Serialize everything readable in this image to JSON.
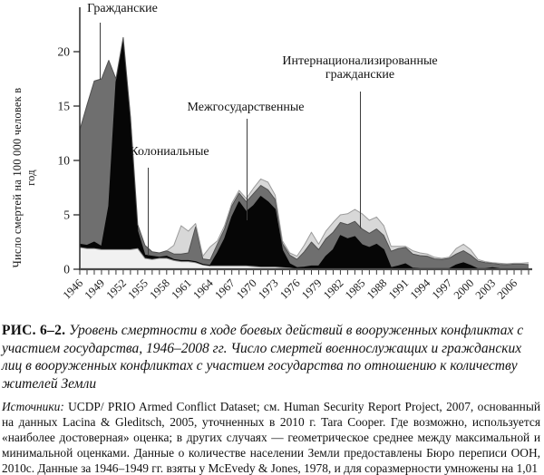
{
  "figure": {
    "caption_label": "РИС. 6–2.",
    "caption_text": "Уровень смертности в ходе боевых действий в вооруженных конфликтах с участием государства, 1946–2008 гг. Число смертей военнослужащих и гражданских лиц в вооруженных конфликтах с участием государства по отношению к количеству жителей Земли",
    "sources_label": "Источники:",
    "sources_text": "UCDP/ PRIO Armed Conflict Dataset; см. Human Security Report Project, 2007, основанный на данных Lacina & Gleditsch, 2005, уточненных в 2010 г. Tara Cooper. Где возможно, используется «наиболее достоверная» оценка; в других случаях — геометрическое среднее между максимальной и минимальной оценками. Данные о количестве населении Земли предоставлены Бюро переписи ООН, 2010с. Данные за 1946–1949 гг. взяты у McEvedy & Jones, 1978, и для соразмерности умножены на 1,01"
  },
  "chart_data": {
    "type": "area",
    "stacked": true,
    "title": "",
    "xlabel": "",
    "ylabel": "Число смертей на 100 000 человек в год",
    "ylim": [
      0,
      24
    ],
    "yticks": [
      0,
      5,
      10,
      15,
      20
    ],
    "grid": false,
    "legend_position": "inline-annotations",
    "x": [
      1946,
      1947,
      1948,
      1949,
      1950,
      1951,
      1952,
      1953,
      1954,
      1955,
      1956,
      1957,
      1958,
      1959,
      1960,
      1961,
      1962,
      1963,
      1964,
      1965,
      1966,
      1967,
      1968,
      1969,
      1970,
      1971,
      1972,
      1973,
      1974,
      1975,
      1976,
      1977,
      1978,
      1979,
      1980,
      1981,
      1982,
      1983,
      1984,
      1985,
      1986,
      1987,
      1988,
      1989,
      1990,
      1991,
      1992,
      1993,
      1994,
      1995,
      1996,
      1997,
      1998,
      1999,
      2000,
      2001,
      2002,
      2003,
      2004,
      2005,
      2006,
      2007,
      2008
    ],
    "x_tick_labels": [
      1946,
      1949,
      1952,
      1955,
      1958,
      1961,
      1964,
      1967,
      1970,
      1973,
      1976,
      1979,
      1982,
      1985,
      1988,
      1991,
      1994,
      1997,
      2000,
      2003,
      2006
    ],
    "series": [
      {
        "name": "Колониальные",
        "color": "#f1f1f1",
        "edge": "#8e8e8e",
        "values": [
          2.0,
          1.9,
          1.9,
          1.8,
          1.8,
          1.8,
          1.8,
          1.8,
          1.9,
          1.0,
          0.9,
          1.0,
          1.0,
          0.8,
          0.7,
          0.7,
          0.6,
          0.4,
          0.3,
          0.3,
          0.3,
          0.3,
          0.3,
          0.3,
          0.25,
          0.2,
          0.2,
          0.2,
          0.15,
          0.1,
          0,
          0,
          0,
          0,
          0,
          0,
          0,
          0,
          0,
          0,
          0,
          0,
          0,
          0,
          0,
          0,
          0,
          0,
          0,
          0,
          0,
          0,
          0,
          0,
          0,
          0,
          0,
          0,
          0,
          0,
          0,
          0,
          0
        ]
      },
      {
        "name": "Межгосударственные",
        "color": "#060606",
        "edge": "#060606",
        "values": [
          0.3,
          0.3,
          0.6,
          0.3,
          4.0,
          15.4,
          19.2,
          11.9,
          1.6,
          0.3,
          0.3,
          0.1,
          0.2,
          0.1,
          0.1,
          0.1,
          0.1,
          0.05,
          0.05,
          1.2,
          2.5,
          4.5,
          5.9,
          5.0,
          5.6,
          6.5,
          6.0,
          5.3,
          1.6,
          0.4,
          0.15,
          0.2,
          0.3,
          0.3,
          1.2,
          1.8,
          3.1,
          2.8,
          3.0,
          2.25,
          2.0,
          2.3,
          1.8,
          0.15,
          0.3,
          0.5,
          0.1,
          0.05,
          0.05,
          0.05,
          0.05,
          0.05,
          0.4,
          0.6,
          0.35,
          0.05,
          0.05,
          0.15,
          0.05,
          0.02,
          0.02,
          0.02,
          0.03
        ]
      },
      {
        "name": "Гражданские",
        "color": "#6f6f6f",
        "edge": "#505050",
        "values": [
          10.5,
          12.9,
          14.8,
          15.4,
          13.4,
          0.3,
          0.3,
          0.3,
          0.6,
          0.9,
          0.4,
          0.4,
          0.5,
          0.5,
          0.6,
          0.7,
          3.2,
          0.5,
          0.5,
          0.8,
          0.9,
          1.0,
          0.8,
          0.9,
          1.1,
          1.0,
          1.1,
          0.9,
          0.6,
          0.8,
          0.75,
          1.4,
          2.2,
          1.5,
          1.6,
          1.6,
          1.2,
          1.3,
          1.4,
          1.45,
          1.3,
          1.4,
          1.3,
          1.5,
          1.6,
          1.5,
          1.3,
          1.2,
          1.15,
          0.9,
          0.85,
          0.95,
          1.0,
          1.1,
          0.95,
          0.7,
          0.55,
          0.4,
          0.4,
          0.4,
          0.45,
          0.45,
          0.4
        ]
      },
      {
        "name": "Интернационализированные гражданские",
        "color": "#d8d8d8",
        "edge": "#9b9b9b",
        "values": [
          0,
          0,
          0,
          0,
          0,
          0,
          0,
          0,
          0,
          0,
          0,
          0,
          0,
          0.8,
          2.6,
          2.0,
          0.3,
          0.25,
          1.2,
          0.3,
          0.3,
          0.25,
          0.25,
          0.3,
          0.5,
          0.6,
          0.7,
          0.4,
          0.25,
          0.2,
          0.3,
          0.6,
          0.9,
          0.5,
          0.7,
          0.9,
          0.7,
          1.0,
          1.1,
          1.4,
          1.2,
          1.1,
          0.9,
          0.45,
          0.2,
          0.1,
          0.3,
          0.25,
          0.2,
          0.15,
          0.1,
          0.1,
          0.5,
          0.6,
          0.5,
          0.15,
          0.1,
          0.05,
          0.1,
          0.08,
          0.08,
          0.08,
          0.17
        ]
      }
    ],
    "annotations": [
      {
        "label": "Гражданские",
        "series": "Гражданские",
        "points_to_year": 1949
      },
      {
        "label": "Колониальные",
        "series": "Колониальные",
        "points_to_year": 1955
      },
      {
        "label": "Межгосударственные",
        "series": "Межгосударственные",
        "points_to_year": 1969
      },
      {
        "label": "Интернационализированные\nгражданские",
        "series": "Интернационализированные гражданские",
        "points_to_year": 1985
      }
    ]
  }
}
